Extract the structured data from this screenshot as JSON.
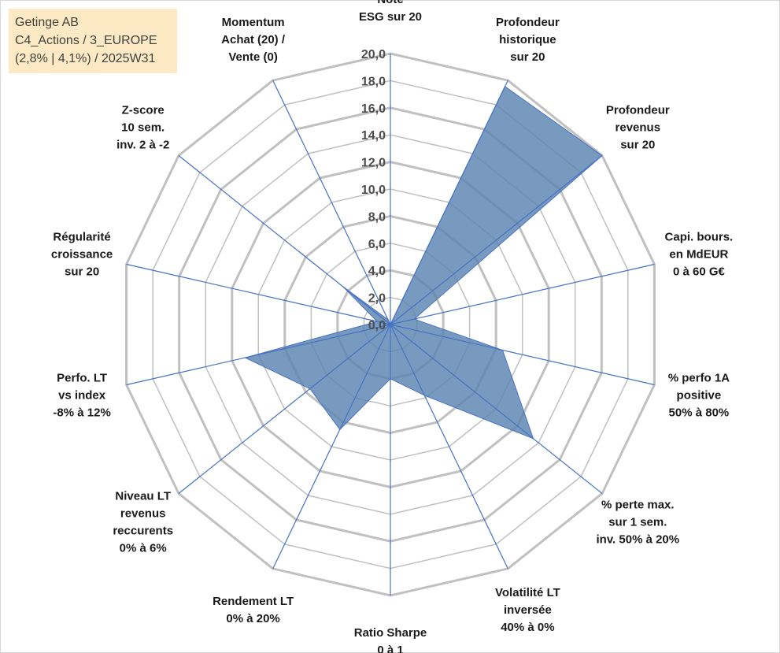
{
  "info": {
    "line1": "Getinge AB",
    "line2": "C4_Actions / 3_EUROPE",
    "line3": "(2,8% | 4,1%) / 2025W31"
  },
  "chart_data": {
    "type": "radar",
    "rmax": 20,
    "tick_step": 2,
    "ticks": [
      "0,0",
      "2,0",
      "4,0",
      "6,0",
      "8,0",
      "10,0",
      "12,0",
      "14,0",
      "16,0",
      "18,0",
      "20,0"
    ],
    "axes": [
      {
        "label": [
          "Note",
          "ESG sur 20"
        ],
        "value": 0
      },
      {
        "label": [
          "Profondeur",
          "historique",
          "sur 20"
        ],
        "value": 19.5
      },
      {
        "label": [
          "Profondeur",
          "revenus",
          "sur 20"
        ],
        "value": 20
      },
      {
        "label": [
          "Capi. bours.",
          "en MdEUR",
          "0 à 60 G€"
        ],
        "value": 1.8
      },
      {
        "label": [
          "% perfo 1A",
          "positive",
          "50% à 80%"
        ],
        "value": 8.5
      },
      {
        "label": [
          "% perte max.",
          "sur 1 sem.",
          "inv. 50% à 20%"
        ],
        "value": 13.5
      },
      {
        "label": [
          "Volatilité LT",
          "inversée",
          "40% à 0%"
        ],
        "value": 5.8
      },
      {
        "label": [
          "Ratio Sharpe",
          "0 à 1"
        ],
        "value": 4.0
      },
      {
        "label": [
          "Rendement LT",
          "0% à 20%"
        ],
        "value": 8.6
      },
      {
        "label": [
          "Niveau LT",
          "revenus",
          "reccurents",
          "0% à 6%"
        ],
        "value": 7.6
      },
      {
        "label": [
          "Perfo. LT",
          "vs index",
          "-8% à 12%"
        ],
        "value": 11.0
      },
      {
        "label": [
          "Régularité",
          "croissance",
          "sur 20"
        ],
        "value": 1.0
      },
      {
        "label": [
          "Z-score",
          "10 sem.",
          "inv. 2 à -2"
        ],
        "value": 4.5
      },
      {
        "label": [
          "Momentum",
          "Achat (20) /",
          "Vente (0)"
        ],
        "value": 0.4
      }
    ],
    "colors": {
      "fill": "#5b84b1",
      "stroke": "#4a72c4",
      "grid": "#c0c0c0",
      "spoke": "#4472c4"
    }
  }
}
